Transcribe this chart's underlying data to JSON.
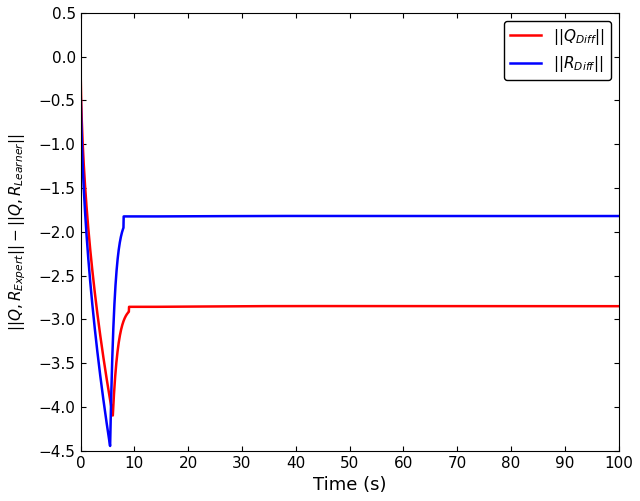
{
  "title": "",
  "xlabel": "Time (s)",
  "ylabel": "||Q, R_{Expert}|| - ||Q, R_{Learner}||",
  "xlim": [
    0,
    100
  ],
  "ylim": [
    -4.5,
    0.5
  ],
  "yticks": [
    0.5,
    0,
    -0.5,
    -1,
    -1.5,
    -2,
    -2.5,
    -3,
    -3.5,
    -4,
    -4.5
  ],
  "xticks": [
    0,
    10,
    20,
    30,
    40,
    50,
    60,
    70,
    80,
    90,
    100
  ],
  "red_color": "#ff0000",
  "blue_color": "#0000ff",
  "red_label": "||Q_{Diff}||",
  "blue_label": "||R_{Diff}||",
  "red_steady": -2.85,
  "blue_steady": -1.82,
  "red_min": -4.1,
  "blue_min": -4.45,
  "red_start": 0.1,
  "blue_start": -0.05,
  "t_min_red": 6.0,
  "t_min_blue": 5.5,
  "t_steady_red": 9.0,
  "t_steady_blue": 8.0,
  "linewidth": 1.8
}
